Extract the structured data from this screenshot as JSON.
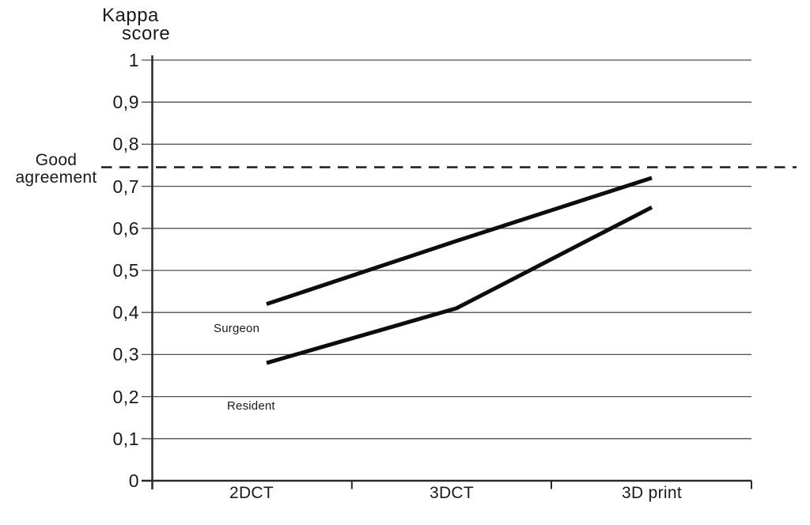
{
  "figure": {
    "background_color": "#ffffff",
    "ink_color": "#1a1a1a",
    "line_color": "#0d0d0d",
    "gridline_color": "#4f4f4f"
  },
  "chart_data": {
    "type": "line",
    "title": "Kappa score",
    "title_lines": [
      "Kappa",
      "score"
    ],
    "xlabel": "",
    "ylabel": "Kappa score",
    "categories": [
      "2DCT",
      "3DCT",
      "3D print"
    ],
    "series": [
      {
        "name": "Surgeon",
        "values": [
          0.42,
          0.57,
          0.72
        ]
      },
      {
        "name": "Resident",
        "values": [
          0.28,
          0.41,
          0.65
        ]
      }
    ],
    "ylim": [
      0,
      1
    ],
    "ytick_values": [
      0,
      0.1,
      0.2,
      0.3,
      0.4,
      0.5,
      0.6,
      0.7,
      0.8,
      0.9,
      1
    ],
    "ytick_labels": [
      "0",
      "0,1",
      "0,2",
      "0,3",
      "0,4",
      "0,5",
      "0,6",
      "0,7",
      "0,8",
      "0,9",
      "1"
    ],
    "decimal_separator": ",",
    "grid": "horizontal",
    "legend_position": "none (series labeled inline near first data point)",
    "reference_line": {
      "value": 0.75,
      "style": "dashed",
      "label": "Good agreement",
      "label_lines": [
        "Good",
        "agreement"
      ]
    }
  }
}
